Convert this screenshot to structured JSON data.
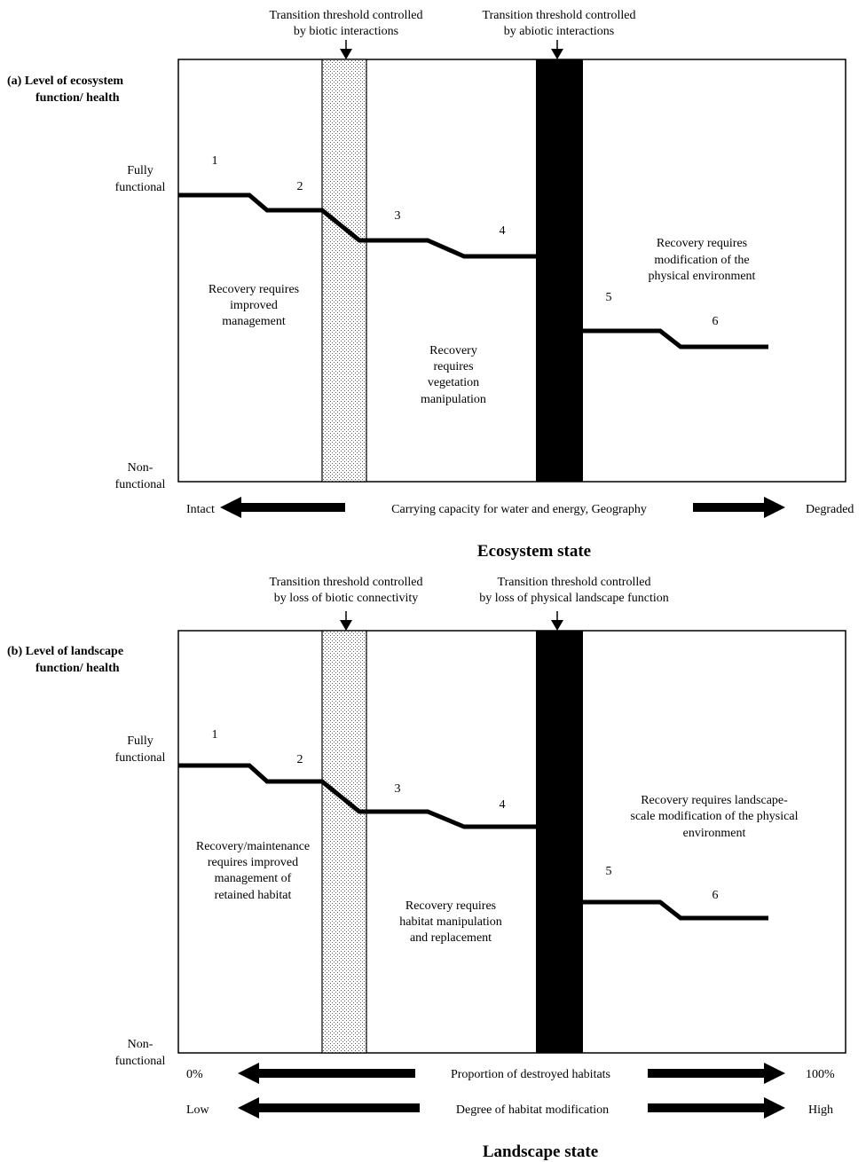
{
  "panel_a": {
    "y_title_line1": "(a) Level of ecosystem",
    "y_title_line2": "function/ health",
    "y_top_line1": "Fully",
    "y_top_line2": "functional",
    "y_bottom_line1": "Non-",
    "y_bottom_line2": "functional",
    "threshold_biotic_line1": "Transition threshold controlled",
    "threshold_biotic_line2": "by biotic interactions",
    "threshold_abiotic_line1": "Transition threshold controlled",
    "threshold_abiotic_line2": "by abiotic interactions",
    "stage_labels": [
      "1",
      "2",
      "3",
      "4",
      "5",
      "6"
    ],
    "zone1_text": [
      "Recovery requires",
      "improved",
      "management"
    ],
    "zone2_text": [
      "Recovery",
      "requires",
      "vegetation",
      "manipulation"
    ],
    "zone3_text": [
      "Recovery requires",
      "modification of the",
      "physical environment"
    ],
    "axis_left": "Intact",
    "axis_middle": "Carrying capacity for water and energy, Geography",
    "axis_right": "Degraded",
    "x_title": "Ecosystem state"
  },
  "panel_b": {
    "y_title_line1": "(b) Level of landscape",
    "y_title_line2": "function/ health",
    "y_top_line1": "Fully",
    "y_top_line2": "functional",
    "y_bottom_line1": "Non-",
    "y_bottom_line2": "functional",
    "threshold_biotic_line1": "Transition threshold controlled",
    "threshold_biotic_line2": "by loss of biotic connectivity",
    "threshold_abiotic_line1": "Transition threshold controlled",
    "threshold_abiotic_line2": "by loss of physical landscape function",
    "stage_labels": [
      "1",
      "2",
      "3",
      "4",
      "5",
      "6"
    ],
    "zone1_text": [
      "Recovery/maintenance",
      "requires improved",
      "management of",
      "retained habitat"
    ],
    "zone2_text": [
      "Recovery requires",
      "habitat manipulation",
      "and replacement"
    ],
    "zone3_text": [
      "Recovery requires landscape-",
      "scale modification of the physical",
      "environment"
    ],
    "axis1_left": "0%",
    "axis1_middle": "Proportion of destroyed habitats",
    "axis1_right": "100%",
    "axis2_left": "Low",
    "axis2_middle": "Degree of habitat modification",
    "axis2_right": "High",
    "x_title": "Landscape state"
  }
}
